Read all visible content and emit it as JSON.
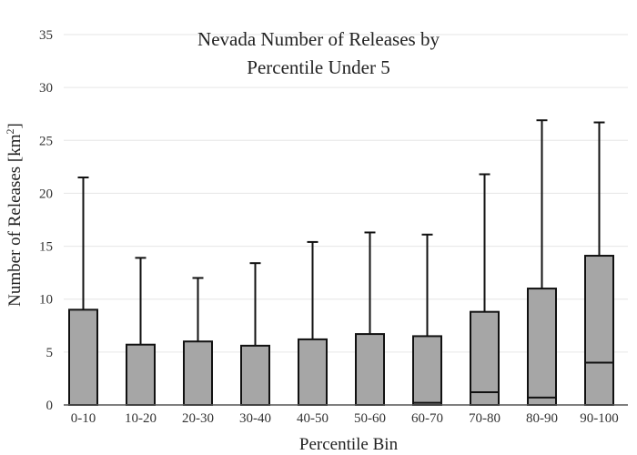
{
  "chart_data": {
    "type": "box",
    "title_line1": "Nevada Number of Releases by",
    "title_line2": "Percentile Under 5",
    "xlabel": "Percentile Bin",
    "ylabel": "Number of Releases  [km",
    "ylabel_sup": "2",
    "ylabel_close": "]",
    "ylim": [
      0,
      35
    ],
    "yticks": [
      0,
      5,
      10,
      15,
      20,
      25,
      30,
      35
    ],
    "grid": true,
    "categories": [
      "0-10",
      "10-20",
      "20-30",
      "30-40",
      "40-50",
      "50-60",
      "60-70",
      "70-80",
      "80-90",
      "90-100"
    ],
    "boxes": [
      {
        "q1": 0,
        "median": 0,
        "q3": 9.0,
        "whisker_high": 21.5
      },
      {
        "q1": 0,
        "median": 0,
        "q3": 5.7,
        "whisker_high": 13.9
      },
      {
        "q1": 0,
        "median": 0,
        "q3": 6.0,
        "whisker_high": 12.0
      },
      {
        "q1": 0,
        "median": 0,
        "q3": 5.6,
        "whisker_high": 13.4
      },
      {
        "q1": 0,
        "median": 0,
        "q3": 6.2,
        "whisker_high": 15.4
      },
      {
        "q1": 0,
        "median": 0,
        "q3": 6.7,
        "whisker_high": 16.3
      },
      {
        "q1": 0,
        "median": 0.2,
        "q3": 6.5,
        "whisker_high": 16.1
      },
      {
        "q1": 0,
        "median": 1.2,
        "q3": 8.8,
        "whisker_high": 21.8
      },
      {
        "q1": 0,
        "median": 0.7,
        "q3": 11.0,
        "whisker_high": 26.9
      },
      {
        "q1": 0,
        "median": 4.0,
        "q3": 14.1,
        "whisker_high": 26.7
      }
    ]
  }
}
